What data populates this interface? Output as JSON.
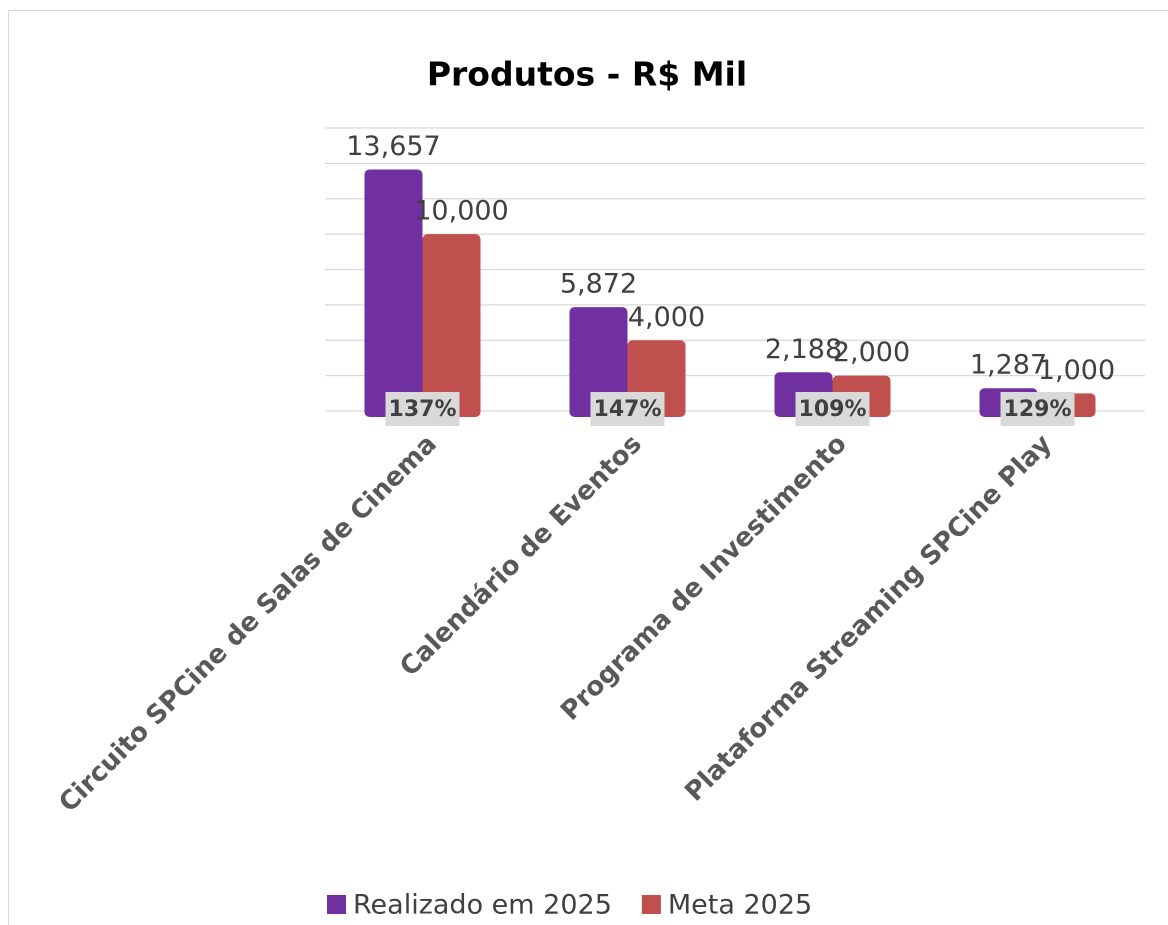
{
  "chart_data": {
    "type": "bar",
    "title": "Produtos - R$ Mil",
    "categories": [
      "Circuito SPCine de Salas de Cinema",
      "Calendário de Eventos",
      "Programa de Investimento",
      "Plataforma Streaming SPCine Play"
    ],
    "series": [
      {
        "name": "Realizado em 2025",
        "color": "#7030a0",
        "values": [
          13657,
          5872,
          2188,
          1287
        ],
        "value_labels": [
          "13,657",
          "5,872",
          "2,188",
          "1,287"
        ]
      },
      {
        "name": "Meta 2025",
        "color": "#c0504d",
        "values": [
          10000,
          4000,
          2000,
          1000
        ],
        "value_labels": [
          "10,000",
          "4,000",
          "2,000",
          "1,000"
        ]
      }
    ],
    "annotations": [
      "137%",
      "147%",
      "109%",
      "129%"
    ],
    "ylim": [
      0,
      16000
    ],
    "yticks": [
      0,
      2000,
      4000,
      6000,
      8000,
      10000,
      12000,
      14000,
      16000
    ],
    "grid": true,
    "legend": "bottom"
  }
}
